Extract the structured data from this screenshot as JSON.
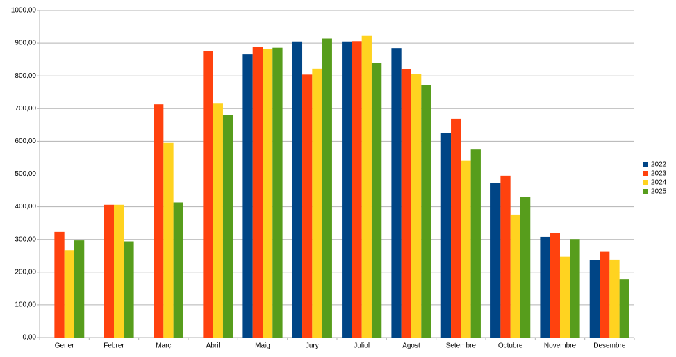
{
  "chart_data": {
    "type": "bar",
    "categories": [
      "Gener",
      "Febrer",
      "Març",
      "Abril",
      "Maig",
      "Jury",
      "Juliol",
      "Agost",
      "Setembre",
      "Octubre",
      "Novembre",
      "Desembre"
    ],
    "series": [
      {
        "name": "2022",
        "color": "#004586",
        "values": [
          null,
          null,
          null,
          null,
          866,
          905,
          905,
          885,
          625,
          472,
          308,
          236
        ]
      },
      {
        "name": "2023",
        "color": "#ff420e",
        "values": [
          323,
          406,
          713,
          876,
          889,
          804,
          906,
          821,
          669,
          495,
          320,
          262
        ]
      },
      {
        "name": "2024",
        "color": "#ffd320",
        "values": [
          267,
          406,
          595,
          715,
          882,
          822,
          922,
          806,
          540,
          376,
          247,
          238
        ]
      },
      {
        "name": "2025",
        "color": "#579d1c",
        "values": [
          297,
          294,
          413,
          680,
          886,
          914,
          840,
          772,
          575,
          429,
          301,
          178
        ]
      }
    ],
    "ylim": [
      0,
      1000
    ],
    "yticks": [
      {
        "value": 0,
        "label": "0,00"
      },
      {
        "value": 100,
        "label": "100,00"
      },
      {
        "value": 200,
        "label": "200,00"
      },
      {
        "value": 300,
        "label": "300,00"
      },
      {
        "value": 400,
        "label": "400,00"
      },
      {
        "value": 500,
        "label": "500,00"
      },
      {
        "value": 600,
        "label": "600,00"
      },
      {
        "value": 700,
        "label": "700,00"
      },
      {
        "value": 800,
        "label": "800,00"
      },
      {
        "value": 900,
        "label": "900,00"
      },
      {
        "value": 1000,
        "label": "1000,00"
      }
    ],
    "grid": true,
    "legend": "right"
  }
}
